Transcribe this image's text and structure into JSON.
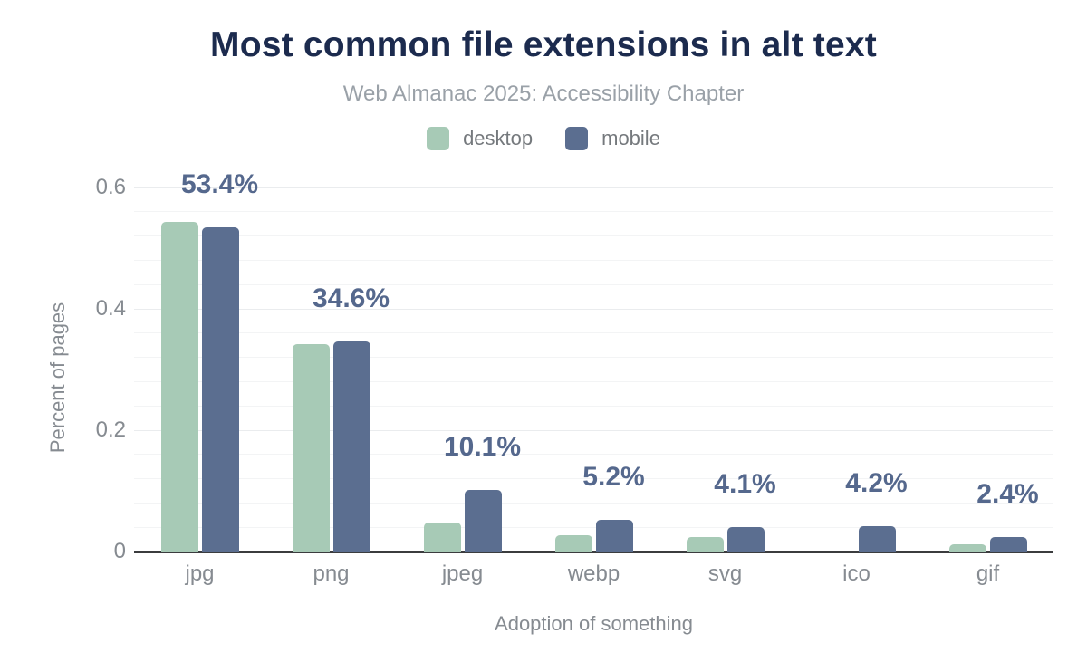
{
  "header": {
    "title": "Most common file extensions in alt text",
    "subtitle": "Web Almanac 2025: Accessibility Chapter"
  },
  "legend": {
    "items": [
      {
        "label": "desktop",
        "color": "#a7cab6"
      },
      {
        "label": "mobile",
        "color": "#5b6e90"
      }
    ]
  },
  "chart_data": {
    "type": "bar",
    "title": "Most common file extensions in alt text",
    "subtitle": "Web Almanac 2025: Accessibility Chapter",
    "categories": [
      "jpg",
      "png",
      "jpeg",
      "webp",
      "svg",
      "ico",
      "gif"
    ],
    "series": [
      {
        "name": "desktop",
        "color": "#a7cab6",
        "values": [
          0.543,
          0.342,
          0.048,
          0.027,
          0.024,
          0,
          0.012
        ]
      },
      {
        "name": "mobile",
        "color": "#5b6e90",
        "values": [
          0.534,
          0.346,
          0.101,
          0.052,
          0.041,
          0.042,
          0.024
        ]
      }
    ],
    "data_labels": {
      "on_series": "mobile",
      "values": [
        "53.4%",
        "34.6%",
        "10.1%",
        "5.2%",
        "4.1%",
        "4.2%",
        "2.4%"
      ]
    },
    "xlabel": "Adoption of something",
    "ylabel": "Percent of pages",
    "ylim": [
      0,
      0.6
    ],
    "yticks": [
      0,
      0.2,
      0.4,
      0.6
    ],
    "ytick_labels": [
      "0",
      "0.2",
      "0.4",
      "0.6"
    ],
    "minor_grid_step": 0.04,
    "grid": true,
    "legend_position": "top"
  },
  "colors": {
    "title": "#1c2b4e",
    "subtitle": "#9aa1a8",
    "axis_text": "#868b91",
    "data_label": "#55688d",
    "axis_line": "#3b3c3e",
    "gridline": "#f3f4f5",
    "background": "#ffffff"
  }
}
